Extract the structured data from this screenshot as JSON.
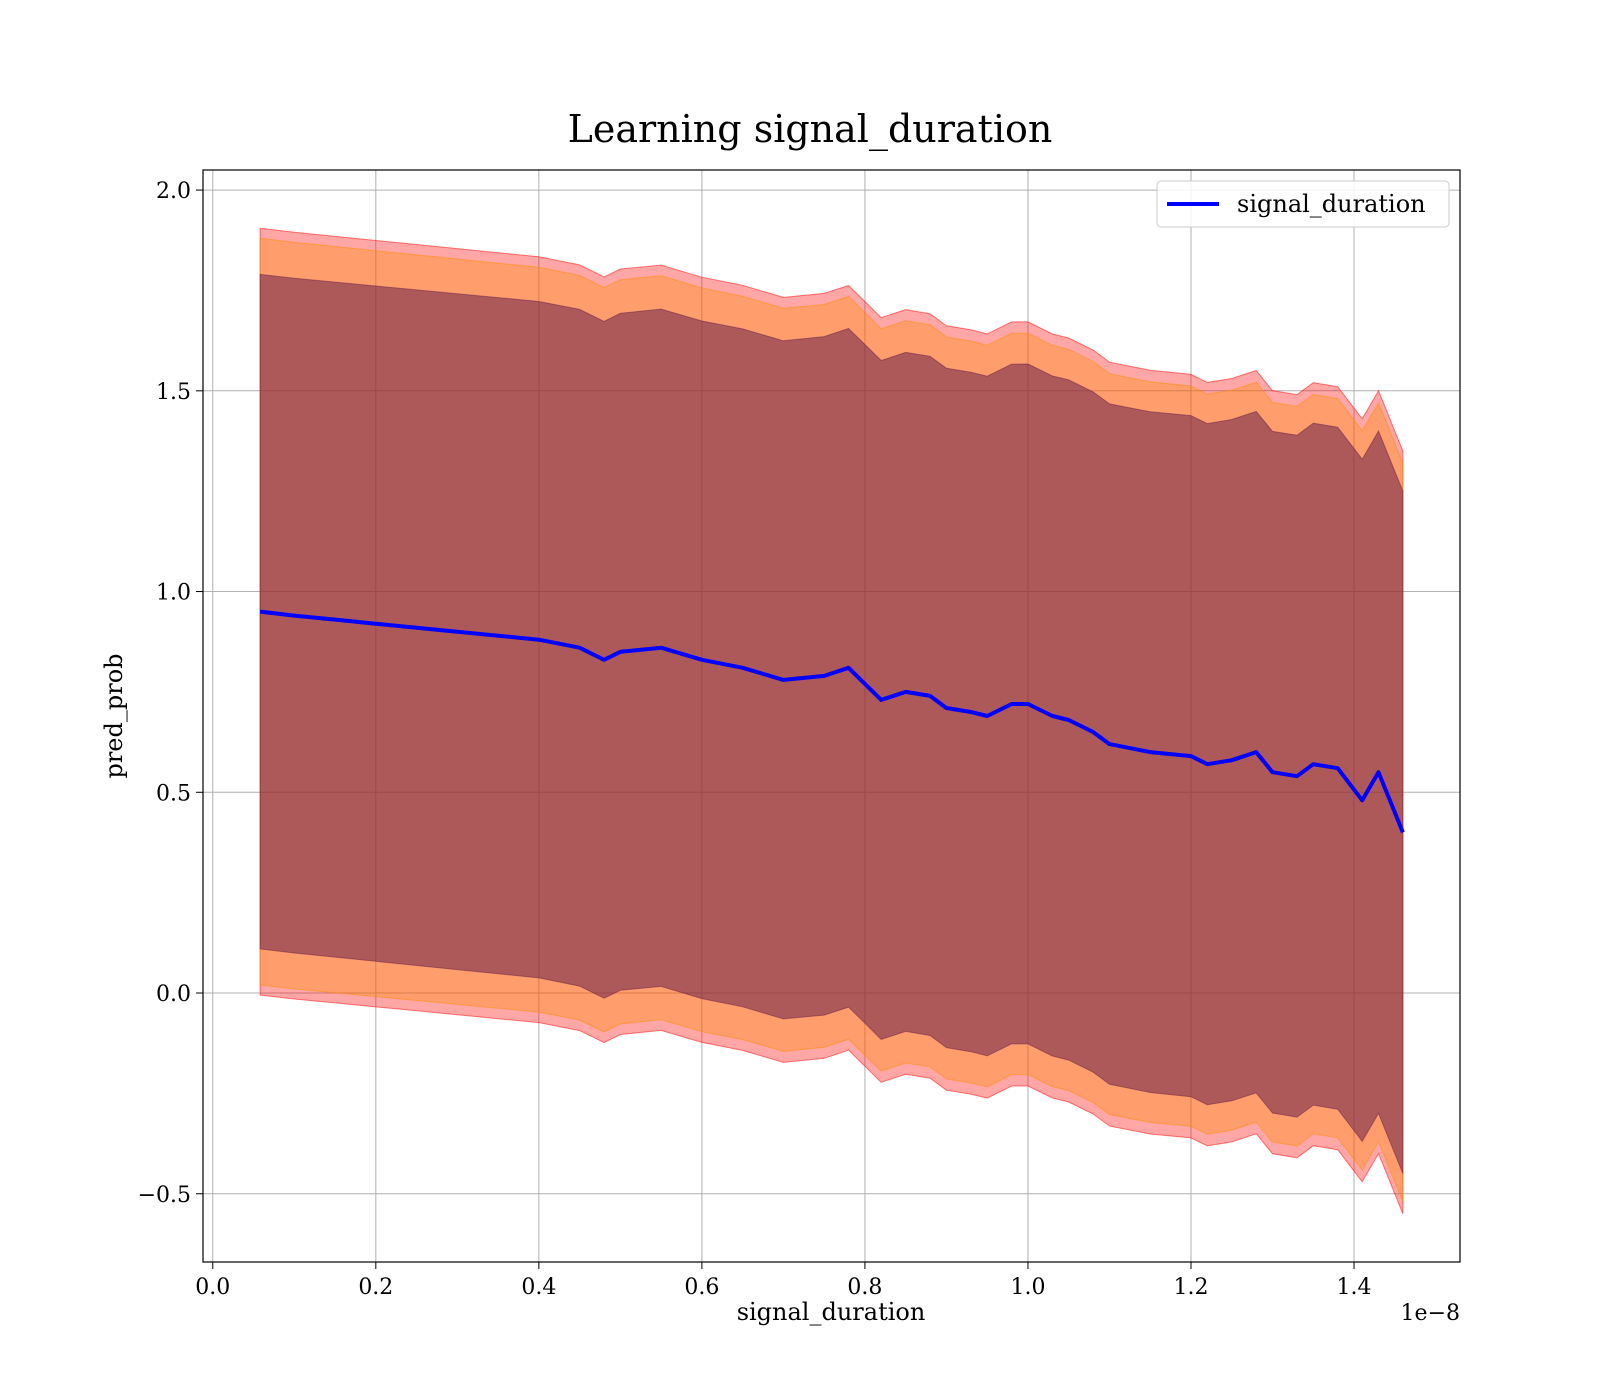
{
  "chart_data": {
    "type": "line",
    "title": "Learning signal_duration",
    "xlabel": "signal_duration",
    "ylabel": "pred_prob",
    "x_offset_text": "1e−8",
    "xlim": [
      -0.012,
      1.53
    ],
    "ylim": [
      -0.67,
      2.05
    ],
    "x_ticks": [
      0.0,
      0.2,
      0.4,
      0.6,
      0.8,
      1.0,
      1.2,
      1.4
    ],
    "x_tick_labels": [
      "0.0",
      "0.2",
      "0.4",
      "0.6",
      "0.8",
      "1.0",
      "1.2",
      "1.4"
    ],
    "y_ticks": [
      -0.5,
      0.0,
      0.5,
      1.0,
      1.5,
      2.0
    ],
    "y_tick_labels": [
      "−0.5",
      "0.0",
      "0.5",
      "1.0",
      "1.5",
      "2.0"
    ],
    "grid": true,
    "legend_position": "top-right",
    "series": [
      {
        "name": "signal_duration",
        "color": "#0000ff",
        "x": [
          0.058,
          0.1,
          0.15,
          0.2,
          0.25,
          0.3,
          0.35,
          0.4,
          0.45,
          0.48,
          0.5,
          0.55,
          0.6,
          0.65,
          0.7,
          0.75,
          0.78,
          0.8,
          0.82,
          0.85,
          0.88,
          0.9,
          0.93,
          0.95,
          0.98,
          1.0,
          1.03,
          1.05,
          1.08,
          1.1,
          1.15,
          1.2,
          1.22,
          1.25,
          1.28,
          1.3,
          1.33,
          1.35,
          1.38,
          1.41,
          1.43,
          1.46
        ],
        "y": [
          0.95,
          0.94,
          0.93,
          0.92,
          0.91,
          0.9,
          0.89,
          0.88,
          0.86,
          0.83,
          0.85,
          0.86,
          0.83,
          0.81,
          0.78,
          0.79,
          0.81,
          0.77,
          0.73,
          0.75,
          0.74,
          0.71,
          0.7,
          0.69,
          0.72,
          0.72,
          0.69,
          0.68,
          0.65,
          0.62,
          0.6,
          0.59,
          0.57,
          0.58,
          0.6,
          0.55,
          0.54,
          0.57,
          0.56,
          0.48,
          0.55,
          0.4
        ]
      }
    ],
    "bands": [
      {
        "name": "band-outer-1",
        "color": "#ff0000",
        "opacity": 0.35,
        "half_width_start": 0.955,
        "half_width_end": 0.95
      },
      {
        "name": "band-outer-2",
        "color": "#ff8c00",
        "opacity": 0.35,
        "half_width_start": 0.93,
        "half_width_end": 0.92
      },
      {
        "name": "band-inner",
        "color": "#6a1f4a",
        "opacity": 0.55,
        "half_width_start": 0.84,
        "half_width_end": 0.85
      }
    ]
  }
}
